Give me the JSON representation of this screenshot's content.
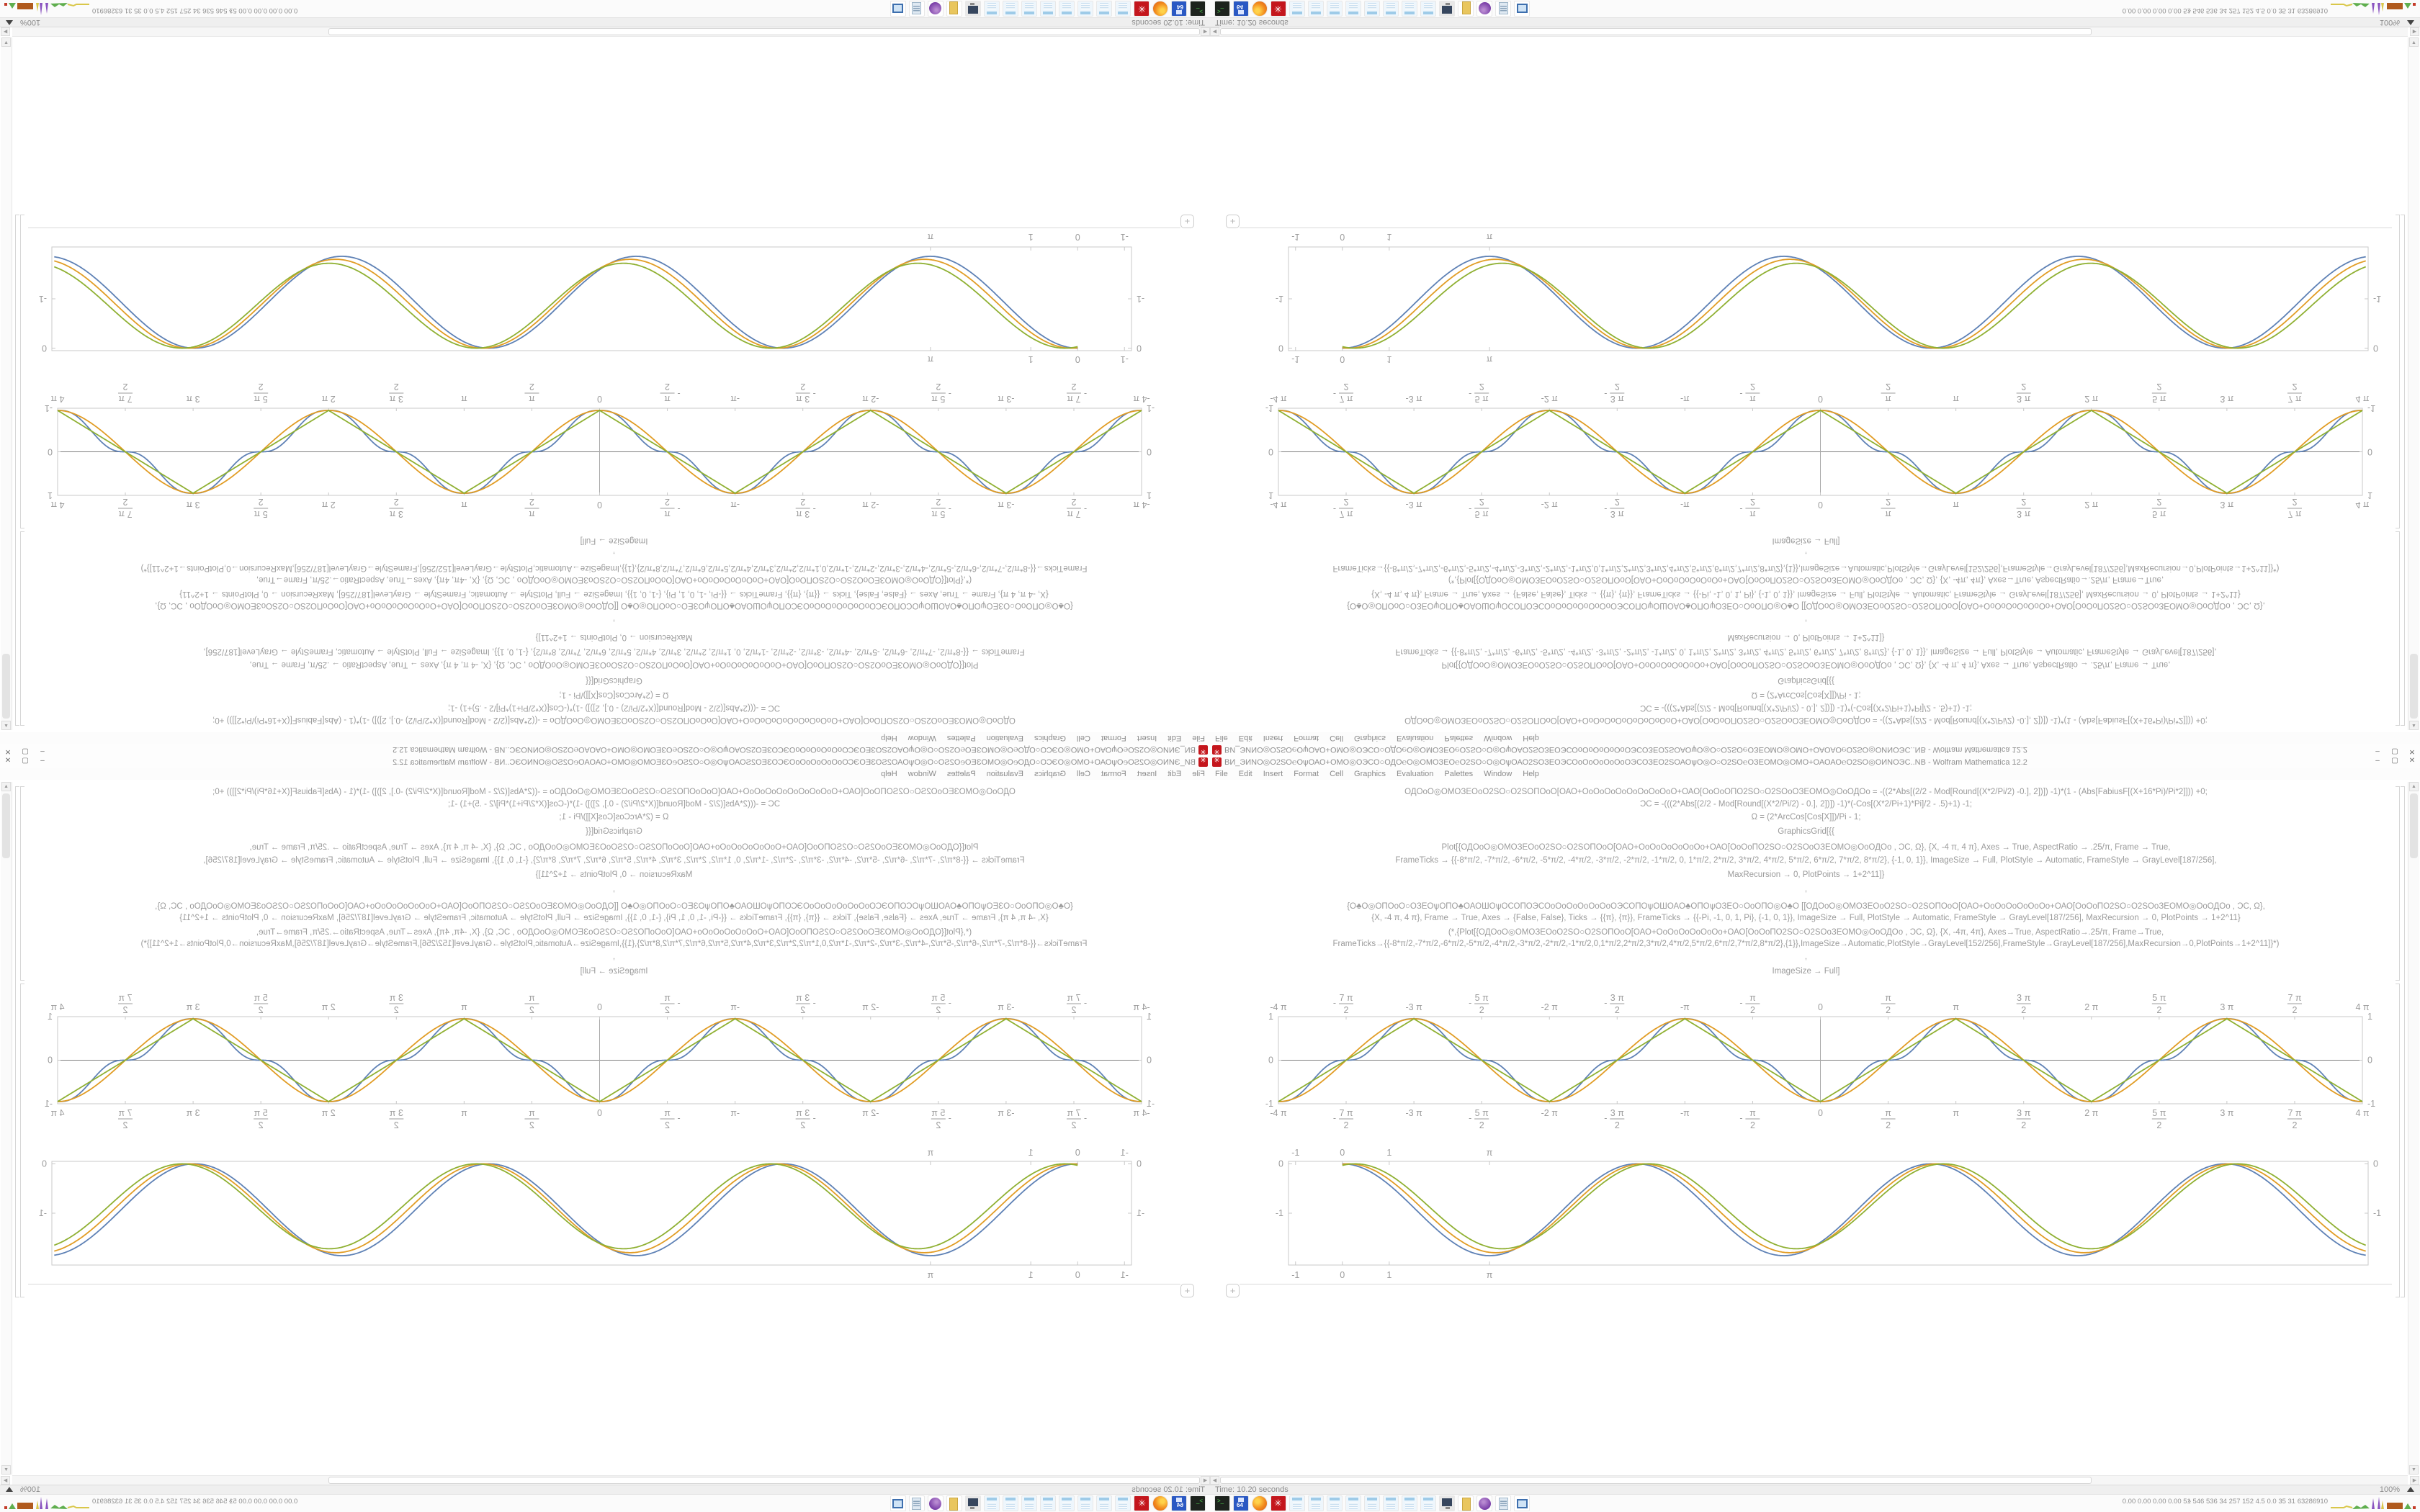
{
  "window": {
    "title": "ВИ_ЭИNО◎О2ЅО℮ОѱОАО+ОМО◎ОЭСО○ОДО℮О◎ОМОЗЕО℮О2ЅО○О◎ОѱОАО2ЅОЗЕОЭСОоОоОоОоОоОЭСОЗЕО2ЅОАОѱО◎О○О2ЅО℮ОЗЕОМО◎ОМО+ОАОАО℮О2ЅО◎ОИNОЭС..NB - Wolfram Mathematica 12.2",
    "buttons": {
      "minimize": "–",
      "maximize": "▢",
      "close": "✕"
    }
  },
  "menu": [
    "File",
    "Edit",
    "Insert",
    "Format",
    "Cell",
    "Graphics",
    "Evaluation",
    "Palettes",
    "Window",
    "Help"
  ],
  "code_lines": [
    "ОДОоО◎ОМОЗЕОоО2ЅО○О2ЅОПОоО[ОАО+ОоОоОоОоОоОоОоОоО+ОАО[ОоОоОПО2ЅО○О2ЅОоОЗЕОМО◎ОоОДОо    = -((2*Abs[(2/2 - Mod[Round[(X*2/Pi/2) -0.], 2])]) -1)*(1 - (Abs[FabiusF[(X+16*Pi)/Pi*2]])) +0;",
    "ƆC = -(((2*Abs[(2/2 - Mod[Round[(X*2/Pi/2) - 0.], 2])]) -1)*(-Cos[(X*2/Pi+1)*Pi]/2 - .5)+1) -1;",
    "Ω = (2*ArcCos[Cos[X]])/Pi  - 1;",
    "GraphicsGrid[{{",
    "Plot[{ОДОоО◎ОМОЗЕОоО2ЅО○О2ЅОПОоО[ОАО+ОоОоОоОоОоОо+ОАО[ОоОоПО2ЅО○О2ЅОоОЗЕОМО◎ОоОДОо   , ƆC, Ω}, {X, -4 π, 4 π}, Axes → True, AspectRatio → .25/π, Frame → True,",
    "FrameTicks → {{-8*π/2, -7*π/2, -6*π/2, -5*π/2, -4*π/2, -3*π/2, -2*π/2, -1*π/2, 0, 1*π/2, 2*π/2, 3*π/2, 4*π/2, 5*π/2, 6*π/2, 7*π/2, 8*π/2}, {-1, 0, 1}}, ImageSize → Full, PlotStyle → Automatic, FrameStyle → GrayLevel[187/256],",
    "MaxRecursion → 0, PlotPoints → 1+2^11]}",
    ",",
    "{О♣О◎ОПОоО○ОЗЕОѱОПО♣ОАОШОѱОСОПОЭСОоОоОоОоОоОоОЭСОПОѱОШОАО♣ОПОѱОЗЕО○ОоОПО◎О♣О   [[ОДОоО◎ОМОЗЕОоО2ЅО○О2ЅОПОоО[ОАО+ОоОоОоОоОоОо+ОАО[ОоОоПО2ЅО○О2ЅОоЗЕОМО◎ОоОДОо   , ƆC, Ω},",
    "{X, -4 π, 4 π}, Frame → True, Axes → {False, False}, Ticks → {{π}, {π}}, FrameTicks → {{-Pi, -1, 0, 1, Pi}, {-1, 0, 1}}, ImageSize → Full, PlotStyle → Automatic, FrameStyle → GrayLevel[187/256], MaxRecursion → 0, PlotPoints → 1+2^11}",
    "(*,{Plot[{ОДОоО◎ОМОЗЕОоО2ЅО○О2ЅОПОоО[ОАО+ОоОоОоОоОоОо+ОАО[ОоОоПО2ЅО○О2ЅОоЗЕОМО◎ОоОДОо   , ƆC, Ω}, {X, -4π, 4π}, Axes→True, AspectRatio→.25/π, Frame→True,",
    "FrameTicks→{{-8*π/2,-7*π/2,-6*π/2,-5*π/2,-4*π/2,-3*π/2,-2*π/2,-1*π/2,0,1*π/2,2*π/2,3*π/2,4*π/2,5*π/2,6*π/2,7*π/2,8*π/2},{1}},ImageSize→Automatic,PlotStyle→GrayLevel[152/256],FrameStyle→GrayLevel[187/256],MaxRecursion→0,PlotPoints→1+2^11]}*)",
    ",",
    "ImageSize → Full]"
  ],
  "status": {
    "time_label": "Time: 10.20 seconds",
    "zoom_label": "100%"
  },
  "taskbar": {
    "icons": [
      {
        "name": "terminal-icon",
        "kind": "t-terminal",
        "glyph": ">_"
      },
      {
        "name": "save-64-icon",
        "kind": "t-save",
        "glyph": "64"
      },
      {
        "name": "firefox-icon",
        "kind": "t-firefox",
        "glyph": ""
      },
      {
        "name": "mathematica-icon",
        "kind": "t-mathematica",
        "glyph": "✳"
      },
      {
        "name": "notepad-icon",
        "kind": "t-notepad",
        "glyph": ""
      },
      {
        "name": "notepad-icon",
        "kind": "t-notepad",
        "glyph": ""
      },
      {
        "name": "notepad-icon",
        "kind": "t-notepad",
        "glyph": ""
      },
      {
        "name": "notepad-icon",
        "kind": "t-notepad",
        "glyph": ""
      },
      {
        "name": "notepad-icon",
        "kind": "t-notepad",
        "glyph": ""
      },
      {
        "name": "notepad-icon",
        "kind": "t-notepad",
        "glyph": ""
      },
      {
        "name": "notepad-icon",
        "kind": "t-notepad",
        "glyph": ""
      },
      {
        "name": "notepad-icon",
        "kind": "t-notepad",
        "glyph": ""
      },
      {
        "name": "monitor-icon",
        "kind": "t-monitor",
        "glyph": ""
      },
      {
        "name": "folder-icon",
        "kind": "t-folder",
        "glyph": ""
      },
      {
        "name": "deluge-icon",
        "kind": "t-deluge",
        "glyph": ""
      },
      {
        "name": "scroll-icon",
        "kind": "t-scroll",
        "glyph": ""
      },
      {
        "name": "window-icon",
        "kind": "t-window",
        "glyph": ""
      }
    ],
    "stats": "0.00 0.00 0.00 0.00   51   546 536   34   257   152   4.5   0.0   35   31   63286910",
    "chevron": "^"
  },
  "colors": {
    "series_blue": "#5e81b5",
    "series_orange": "#e19c24",
    "series_green": "#8fb032",
    "frame_gray": "#c8c8c8",
    "tick_label_gray": "#9c9c9c",
    "mathematica_red": "#c4161c"
  },
  "chart_data": [
    {
      "type": "line",
      "title": "",
      "xlabel": "",
      "ylabel": "",
      "x_range": [
        -12.566,
        12.566
      ],
      "y_range": [
        -1,
        1
      ],
      "frame": true,
      "axes": true,
      "x_ticks": [
        {
          "v": -12.566,
          "label": "-4 π",
          "frac": false
        },
        {
          "v": -10.996,
          "frac": true,
          "num": "7 π",
          "den": "2",
          "sign": "-"
        },
        {
          "v": -9.4248,
          "label": "-3 π",
          "frac": false
        },
        {
          "v": -7.854,
          "frac": true,
          "num": "5 π",
          "den": "2",
          "sign": "-"
        },
        {
          "v": -6.2832,
          "label": "-2 π",
          "frac": false
        },
        {
          "v": -4.7124,
          "frac": true,
          "num": "3 π",
          "den": "2",
          "sign": "-"
        },
        {
          "v": -3.1416,
          "label": "-π",
          "frac": false
        },
        {
          "v": -1.5708,
          "frac": true,
          "num": "π",
          "den": "2",
          "sign": "-"
        },
        {
          "v": 0,
          "label": "0",
          "frac": false
        },
        {
          "v": 1.5708,
          "frac": true,
          "num": "π",
          "den": "2",
          "sign": ""
        },
        {
          "v": 3.1416,
          "label": "π",
          "frac": false
        },
        {
          "v": 4.7124,
          "frac": true,
          "num": "3 π",
          "den": "2",
          "sign": ""
        },
        {
          "v": 6.2832,
          "label": "2 π",
          "frac": false
        },
        {
          "v": 7.854,
          "frac": true,
          "num": "5 π",
          "den": "2",
          "sign": ""
        },
        {
          "v": 9.4248,
          "label": "3 π",
          "frac": false
        },
        {
          "v": 10.996,
          "frac": true,
          "num": "7 π",
          "den": "2",
          "sign": ""
        },
        {
          "v": 12.566,
          "label": "4 π",
          "frac": false
        }
      ],
      "y_ticks": [
        {
          "v": 1,
          "label": "1"
        },
        {
          "v": 0,
          "label": "0"
        },
        {
          "v": -1,
          "label": "-1"
        }
      ],
      "series": [
        {
          "name": "staircase-smooth-wave",
          "color": "#5e81b5",
          "kind": "staircase",
          "period": 6.2832,
          "amplitude": 1
        },
        {
          "name": "smoothed-triangle-wave",
          "color": "#e19c24",
          "kind": "smooth-triangle",
          "period": 6.2832,
          "amplitude": 1
        },
        {
          "name": "triangle-wave",
          "color": "#8fb032",
          "kind": "triangle",
          "period": 6.2832,
          "amplitude": 1
        }
      ]
    },
    {
      "type": "line",
      "title": "",
      "xlabel": "",
      "ylabel": "",
      "x_range": [
        -1.15,
        21.9
      ],
      "y_range": [
        -2.05,
        0.05
      ],
      "frame": true,
      "axes": false,
      "x_ticks": [
        {
          "v": -1,
          "label": "-1",
          "frac": false
        },
        {
          "v": 0,
          "label": "0",
          "frac": false
        },
        {
          "v": 1,
          "label": "1",
          "frac": false
        },
        {
          "v": 3.1416,
          "label": "π",
          "frac": false
        }
      ],
      "y_ticks": [
        {
          "v": 0,
          "label": "0"
        },
        {
          "v": -1,
          "label": "-1"
        }
      ],
      "series": [
        {
          "name": "shifted-cosine-blue",
          "color": "#5e81b5",
          "kind": "cosine-minus-one",
          "phase": 0,
          "amplitude": 0.93,
          "domain": [
            0,
            21.85
          ]
        },
        {
          "name": "shifted-cosine-orange",
          "color": "#e19c24",
          "kind": "cosine-minus-one",
          "phase": 0.13,
          "amplitude": 0.9,
          "domain": [
            0,
            21.85
          ]
        },
        {
          "name": "shifted-cosine-green",
          "color": "#8fb032",
          "kind": "cosine-minus-one",
          "phase": 0.27,
          "amplitude": 0.86,
          "domain": [
            0,
            21.85
          ]
        }
      ]
    }
  ]
}
